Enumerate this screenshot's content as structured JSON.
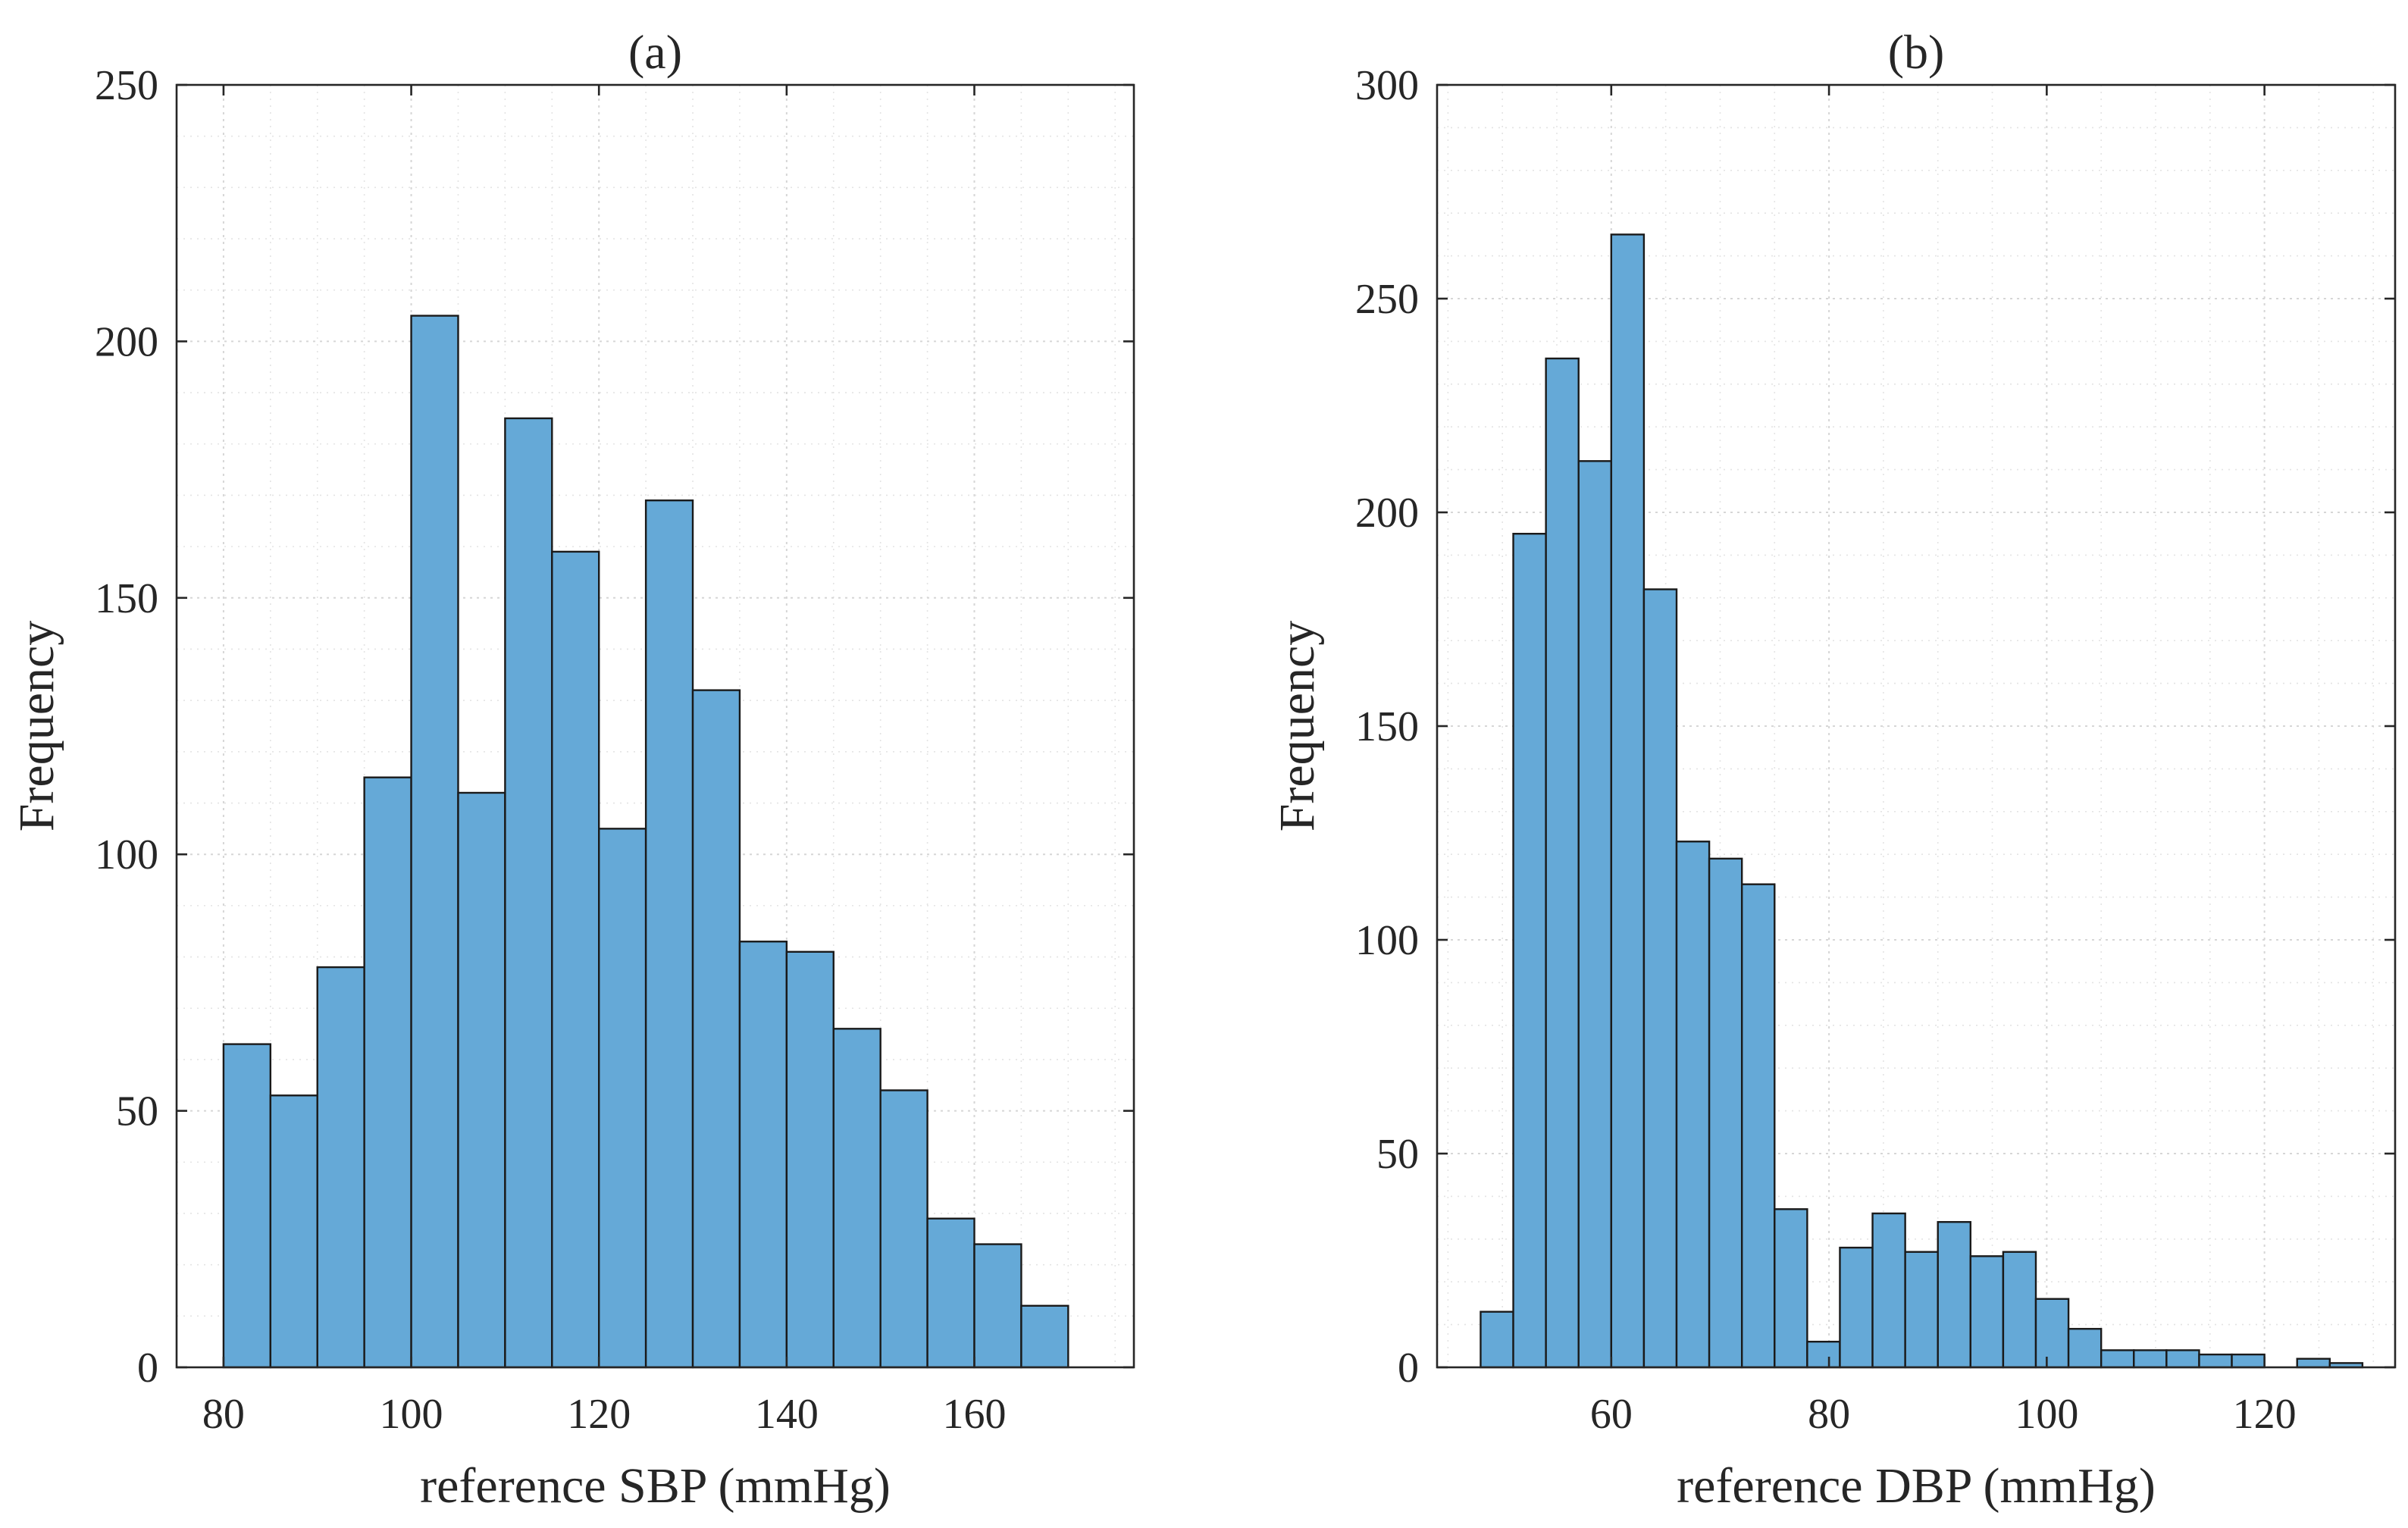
{
  "chart_data": [
    {
      "type": "bar",
      "title": "(a)",
      "xlabel": "reference SBP (mmHg)",
      "ylabel": "Frequency",
      "xlim": [
        75,
        177
      ],
      "ylim": [
        0,
        250
      ],
      "grid": true,
      "xticks": [
        80,
        100,
        120,
        140,
        160
      ],
      "yticks": [
        0,
        50,
        100,
        150,
        200,
        250
      ],
      "bin_edges": [
        80,
        85,
        90,
        95,
        100,
        105,
        110,
        115,
        120,
        125,
        130,
        135,
        140,
        145,
        150,
        155,
        160,
        165,
        170
      ],
      "values": [
        63,
        53,
        78,
        115,
        205,
        112,
        185,
        159,
        105,
        169,
        132,
        83,
        81,
        66,
        54,
        29,
        24,
        12
      ],
      "color": "#65a9d7"
    },
    {
      "type": "bar",
      "title": "(b)",
      "xlabel": "reference DBP (mmHg)",
      "ylabel": "Frequency",
      "xlim": [
        44,
        132
      ],
      "ylim": [
        0,
        300
      ],
      "grid": true,
      "xticks": [
        60,
        80,
        100,
        120
      ],
      "yticks": [
        0,
        50,
        100,
        150,
        200,
        250,
        300
      ],
      "bin_edges": [
        48,
        51,
        54,
        57,
        60,
        63,
        66,
        69,
        72,
        75,
        78,
        81,
        84,
        87,
        90,
        93,
        96,
        99,
        102,
        105,
        108,
        111,
        114,
        117,
        120,
        123,
        126,
        129
      ],
      "values": [
        13,
        195,
        236,
        212,
        265,
        182,
        123,
        119,
        113,
        37,
        6,
        28,
        36,
        27,
        34,
        26,
        27,
        16,
        9,
        4,
        4,
        4,
        3,
        3,
        0,
        2,
        1
      ],
      "color": "#65a9d7"
    }
  ]
}
